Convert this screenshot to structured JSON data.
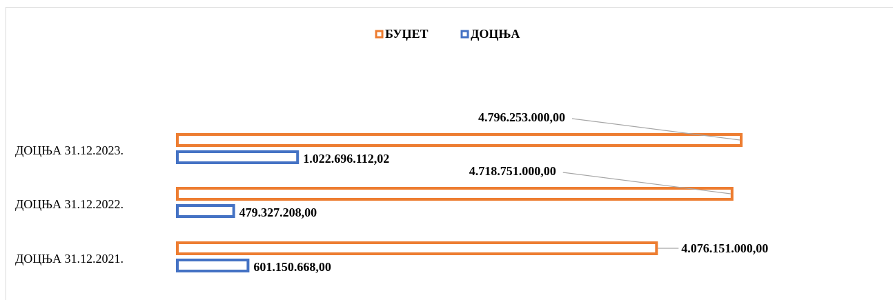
{
  "chart_data": {
    "type": "bar",
    "orientation": "horizontal",
    "categories": [
      "ДОЦЊА 31.12.2023.",
      "ДОЦЊА 31.12.2022.",
      "ДОЦЊА 31.12.2021."
    ],
    "series": [
      {
        "name": "БУЏЕТ",
        "color": "#ed7d31",
        "values": [
          4796253000,
          4718751000,
          4076151000
        ],
        "value_labels": [
          "4.796.253.000,00",
          "4.718.751.000,00",
          "4.076.151.000,00"
        ]
      },
      {
        "name": "ДОЦЊА",
        "color": "#4472c4",
        "values": [
          1022696112.02,
          479327208,
          601150668
        ],
        "value_labels": [
          "1.022.696.112,02",
          "479.327.208,00",
          "601.150.668,00"
        ]
      }
    ],
    "xlim": [
      0,
      6000000000
    ],
    "legend": "top"
  }
}
